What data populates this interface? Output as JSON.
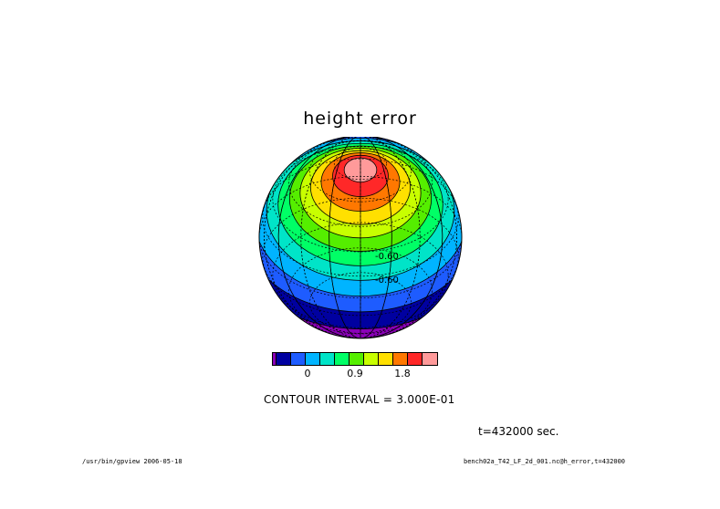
{
  "title": "height error",
  "colorbar": {
    "colors": [
      "#8a00b8",
      "#0000a0",
      "#1e5cff",
      "#00b4ff",
      "#00e4c8",
      "#00ff66",
      "#55ee00",
      "#c8ff00",
      "#ffe000",
      "#ff7800",
      "#ff2828",
      "#ff9a9a"
    ],
    "tick_labels": [
      "0",
      "0.9",
      "1.8"
    ]
  },
  "contour_labels": [
    "-0.60",
    "-0.60"
  ],
  "contour_interval_text": "CONTOUR INTERVAL = 3.000E-01",
  "time_text": "t=432000 sec.",
  "footer_left": "/usr/bin/gpview  2006-05-18",
  "footer_right": "bench02a_T42_LF_2d_001.nc@h_error,t=432000",
  "chart_data": {
    "type": "heatmap",
    "projection": "orthographic",
    "title": "height error",
    "levels_step": 0.3,
    "colorbar_ticks": [
      0,
      0.9,
      1.8
    ],
    "bands_from_pole": [
      {
        "color": "#ff9a9a",
        "level_min": 2.4
      },
      {
        "color": "#ff2828",
        "level_min": 2.1
      },
      {
        "color": "#ff7800",
        "level_min": 1.8
      },
      {
        "color": "#ffe000",
        "level_min": 1.5
      },
      {
        "color": "#c8ff00",
        "level_min": 1.2
      },
      {
        "color": "#55ee00",
        "level_min": 0.9
      },
      {
        "color": "#00ff66",
        "level_min": 0.6
      },
      {
        "color": "#00e4c8",
        "level_min": 0.3
      },
      {
        "color": "#00b4ff",
        "level_min": 0.0
      },
      {
        "color": "#1e5cff",
        "level_min": -0.3
      },
      {
        "color": "#0000a0",
        "level_min": -0.6
      },
      {
        "color": "#8a00b8",
        "level_min": -0.9
      },
      {
        "color": "#0000a0",
        "level_min": -0.6
      },
      {
        "color": "#1e5cff",
        "level_min": -0.3
      }
    ]
  }
}
